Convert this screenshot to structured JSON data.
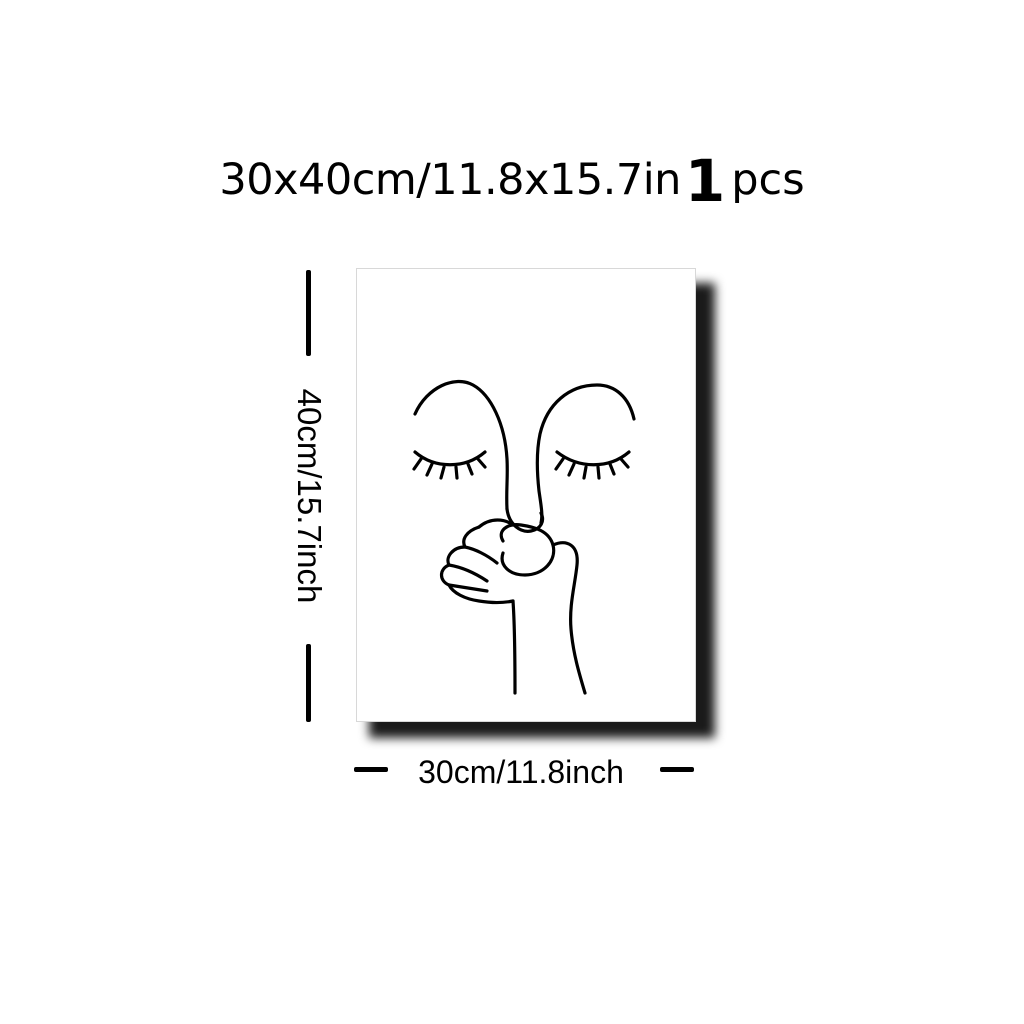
{
  "headline": {
    "size_text": "30x40cm/11.8x15.7in",
    "quantity_number": "1",
    "quantity_unit": "pcs"
  },
  "dimensions": {
    "height_label": "40cm/15.7inch",
    "width_label": "30cm/11.8inch"
  },
  "artwork": {
    "subject": "line-art face with closed eyes and hand holding nose",
    "stroke_color": "#000000"
  }
}
